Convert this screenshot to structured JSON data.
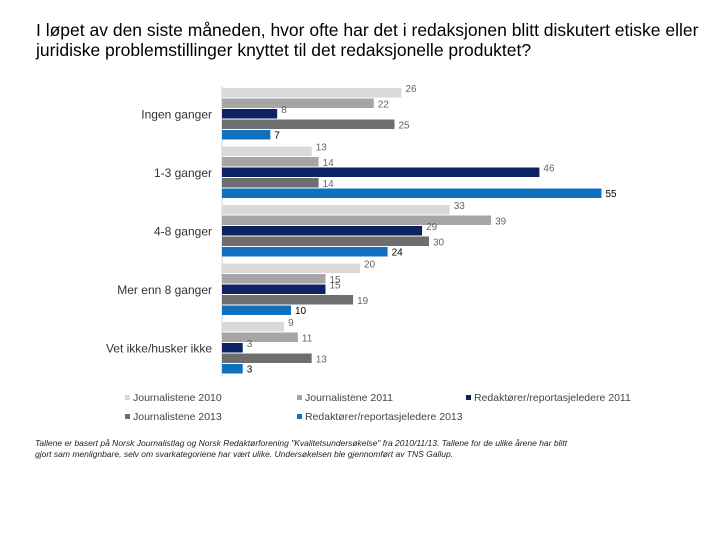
{
  "title": "I løpet av den siste måneden, hvor ofte har det i redaksjonen blitt diskutert etiske eller juridiske problemstillinger knyttet til det redaksjonelle produktet?",
  "footnote": "Tallene er  basert på Norsk Journalistlag og Norsk Redaktørforening \"Kvalitetsundersøkelse\" fra 2010/11/13. Tallene for de ulike årene har blitt gjort sam menlignbare, selv om svarkategoriene har vært ulike.   Undersøkelsen ble gjennomført av TNS Gallup.",
  "chart_data": {
    "type": "bar",
    "orientation": "horizontal",
    "categories": [
      "Ingen ganger",
      "1-3 ganger",
      "4-8 ganger",
      "Mer enn 8 ganger",
      "Vet ikke/husker ikke"
    ],
    "series": [
      {
        "name": "Journalistene 2010",
        "color": "#d9d9d9",
        "values": [
          26,
          13,
          33,
          20,
          9
        ]
      },
      {
        "name": "Journalistene 2011",
        "color": "#a6a6a6",
        "values": [
          22,
          14,
          39,
          15,
          11
        ]
      },
      {
        "name": "Redaktører/reportasjeledere 2011",
        "color": "#0d2260",
        "values": [
          8,
          46,
          29,
          15,
          3
        ]
      },
      {
        "name": "Journalistene 2013",
        "color": "#6e6e6e",
        "values": [
          25,
          14,
          30,
          19,
          13
        ]
      },
      {
        "name": "Redaktører/reportasjeledere 2013",
        "color": "#1070c0",
        "values": [
          7,
          55,
          24,
          10,
          3
        ]
      }
    ],
    "xlim": [
      0,
      55
    ],
    "grid": false,
    "legend_position": "bottom",
    "data_labels": true
  }
}
